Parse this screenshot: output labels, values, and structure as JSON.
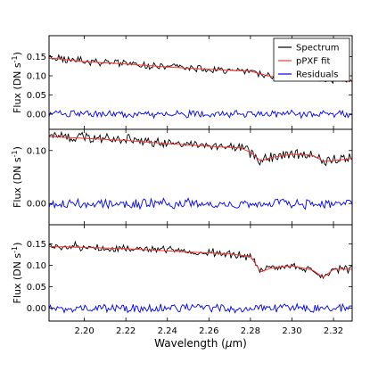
{
  "chart_data": [
    {
      "type": "line",
      "ylabel": "Flux (DN s$^{-1}$)",
      "xlim": [
        2.183,
        2.329
      ],
      "ylim": [
        -0.04,
        0.205
      ],
      "yticks": [
        "0.00",
        "0.05",
        "0.10",
        "0.15"
      ],
      "legend": {
        "placement": "top-right",
        "entries": [
          "Spectrum",
          "pPXF fit",
          "Residuals"
        ]
      },
      "series": [
        {
          "name": "Spectrum",
          "color": "#000000",
          "x": [
            2.185,
            2.2,
            2.22,
            2.24,
            2.26,
            2.28,
            2.29,
            2.3,
            2.31,
            2.315,
            2.32,
            2.329
          ],
          "y": [
            0.148,
            0.138,
            0.132,
            0.123,
            0.118,
            0.112,
            0.098,
            0.1,
            0.096,
            0.09,
            0.089,
            0.086
          ]
        },
        {
          "name": "pPXF fit",
          "color": "#ff3030",
          "x": [
            2.185,
            2.2,
            2.22,
            2.24,
            2.26,
            2.28,
            2.29,
            2.3,
            2.31,
            2.315,
            2.32,
            2.329
          ],
          "y": [
            0.146,
            0.137,
            0.131,
            0.123,
            0.117,
            0.112,
            0.098,
            0.099,
            0.095,
            0.089,
            0.088,
            0.086
          ]
        },
        {
          "name": "Residuals",
          "color": "#0000ff",
          "x": [
            2.185,
            2.329
          ],
          "y": [
            0.0,
            0.0
          ]
        }
      ]
    },
    {
      "type": "line",
      "ylabel": "Flux (DN s$^{-1}$)",
      "xlim": [
        2.183,
        2.329
      ],
      "ylim": [
        -0.04,
        0.14
      ],
      "yticks": [
        "0.00",
        "0.10"
      ],
      "series": [
        {
          "name": "Spectrum",
          "color": "#000000",
          "x": [
            2.185,
            2.2,
            2.22,
            2.24,
            2.26,
            2.275,
            2.28,
            2.285,
            2.29,
            2.3,
            2.31,
            2.315,
            2.32,
            2.329
          ],
          "y": [
            0.128,
            0.124,
            0.12,
            0.114,
            0.109,
            0.106,
            0.098,
            0.08,
            0.088,
            0.094,
            0.092,
            0.08,
            0.082,
            0.086
          ]
        },
        {
          "name": "pPXF fit",
          "color": "#ff3030",
          "x": [
            2.185,
            2.2,
            2.22,
            2.24,
            2.26,
            2.275,
            2.28,
            2.285,
            2.29,
            2.3,
            2.31,
            2.315,
            2.32,
            2.329
          ],
          "y": [
            0.126,
            0.123,
            0.119,
            0.113,
            0.108,
            0.105,
            0.097,
            0.08,
            0.087,
            0.093,
            0.091,
            0.08,
            0.081,
            0.085
          ]
        },
        {
          "name": "Residuals",
          "color": "#0000ff",
          "x": [
            2.185,
            2.329
          ],
          "y": [
            0.0,
            0.0
          ]
        }
      ]
    },
    {
      "type": "line",
      "xlabel": "Wavelength ($\\mu$m)",
      "ylabel": "Flux (DN s$^{-1}$)",
      "xlim": [
        2.183,
        2.329
      ],
      "ylim": [
        -0.03,
        0.195
      ],
      "yticks": [
        "0.00",
        "0.05",
        "0.10",
        "0.15"
      ],
      "xticks": [
        "2.20",
        "2.22",
        "2.24",
        "2.26",
        "2.28",
        "2.30",
        "2.32"
      ],
      "series": [
        {
          "name": "Spectrum",
          "color": "#000000",
          "x": [
            2.185,
            2.2,
            2.22,
            2.24,
            2.26,
            2.27,
            2.28,
            2.285,
            2.29,
            2.3,
            2.31,
            2.315,
            2.32,
            2.329
          ],
          "y": [
            0.145,
            0.143,
            0.14,
            0.135,
            0.13,
            0.128,
            0.122,
            0.085,
            0.095,
            0.1,
            0.09,
            0.07,
            0.092,
            0.092
          ]
        },
        {
          "name": "pPXF fit",
          "color": "#ff3030",
          "x": [
            2.185,
            2.2,
            2.22,
            2.24,
            2.26,
            2.27,
            2.28,
            2.285,
            2.29,
            2.3,
            2.31,
            2.315,
            2.32,
            2.329
          ],
          "y": [
            0.144,
            0.142,
            0.139,
            0.134,
            0.129,
            0.127,
            0.121,
            0.085,
            0.094,
            0.099,
            0.089,
            0.072,
            0.091,
            0.091
          ]
        },
        {
          "name": "Residuals",
          "color": "#0000ff",
          "x": [
            2.185,
            2.329
          ],
          "y": [
            0.0,
            0.0
          ]
        }
      ]
    }
  ]
}
